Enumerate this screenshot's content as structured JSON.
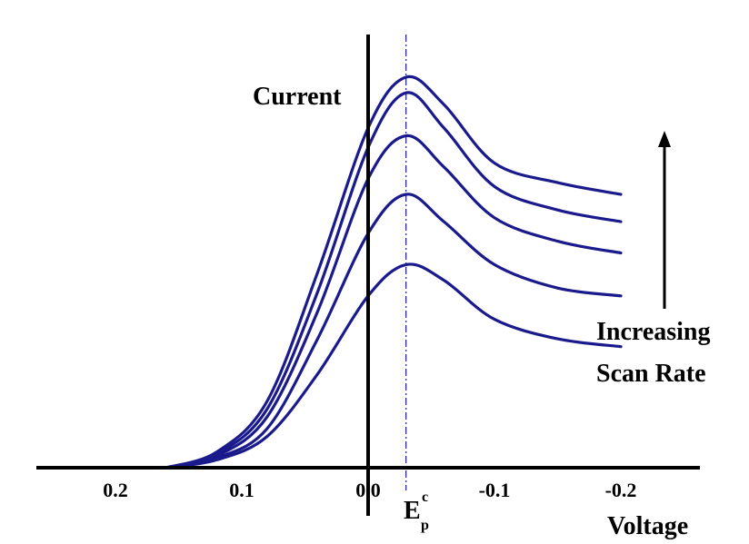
{
  "colors": {
    "curve": "#1a1a8c",
    "axis": "#000000",
    "peak_line": "#1a1a8c",
    "background": "#ffffff"
  },
  "chart_data": {
    "type": "line",
    "title": "",
    "xlabel": "Voltage",
    "ylabel": "Current",
    "x_direction": "decreasing",
    "xlim": [
      0.25,
      -0.25
    ],
    "ylim": [
      0,
      1
    ],
    "x_ticks": [
      0.2,
      0.1,
      0.0,
      -0.1,
      -0.2
    ],
    "x_tick_labels": [
      "0.2",
      "0.1",
      "0.0",
      "-0.1",
      "-0.2"
    ],
    "grid": false,
    "legend": "none",
    "peak_potential": -0.03,
    "peak_label": {
      "main": "E",
      "sub": "p",
      "sup": "c"
    },
    "arrow_label_lines": [
      "Increasing",
      "Scan Rate"
    ],
    "series": [
      {
        "x": [
          0.16,
          0.12,
          0.08,
          0.04,
          0.0,
          -0.03,
          -0.06,
          -0.1,
          -0.15,
          -0.2
        ],
        "y": [
          0.0,
          0.02,
          0.08,
          0.24,
          0.44,
          0.52,
          0.48,
          0.38,
          0.33,
          0.31
        ]
      },
      {
        "x": [
          0.16,
          0.12,
          0.08,
          0.04,
          0.0,
          -0.03,
          -0.06,
          -0.1,
          -0.15,
          -0.2
        ],
        "y": [
          0.0,
          0.025,
          0.1,
          0.33,
          0.6,
          0.7,
          0.63,
          0.52,
          0.46,
          0.44
        ]
      },
      {
        "x": [
          0.16,
          0.12,
          0.08,
          0.04,
          0.0,
          -0.03,
          -0.06,
          -0.1,
          -0.15,
          -0.2
        ],
        "y": [
          0.0,
          0.03,
          0.13,
          0.4,
          0.74,
          0.85,
          0.77,
          0.64,
          0.58,
          0.55
        ]
      },
      {
        "x": [
          0.16,
          0.12,
          0.08,
          0.04,
          0.0,
          -0.03,
          -0.06,
          -0.1,
          -0.15,
          -0.2
        ],
        "y": [
          0.0,
          0.035,
          0.15,
          0.45,
          0.82,
          0.96,
          0.87,
          0.72,
          0.66,
          0.63
        ]
      },
      {
        "x": [
          0.16,
          0.12,
          0.08,
          0.04,
          0.0,
          -0.03,
          -0.06,
          -0.1,
          -0.15,
          -0.2
        ],
        "y": [
          0.0,
          0.04,
          0.17,
          0.5,
          0.87,
          1.0,
          0.93,
          0.78,
          0.73,
          0.7
        ]
      }
    ]
  }
}
